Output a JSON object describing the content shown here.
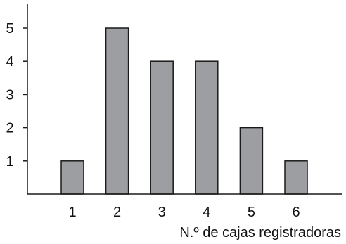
{
  "chart_data": {
    "type": "bar",
    "categories": [
      "1",
      "2",
      "3",
      "4",
      "5",
      "6"
    ],
    "values": [
      1,
      5,
      4,
      4,
      2,
      1
    ],
    "title": "",
    "xlabel": "N.º de cajas registradoras",
    "ylabel": "",
    "ylim": [
      0,
      5.6
    ],
    "yticks": [
      "1",
      "2",
      "3",
      "4",
      "5"
    ],
    "grid": false,
    "colors": {
      "bar_fill": "#9d9ea2",
      "bar_stroke": "#1a1a1a",
      "axis": "#1a1a1a"
    }
  }
}
